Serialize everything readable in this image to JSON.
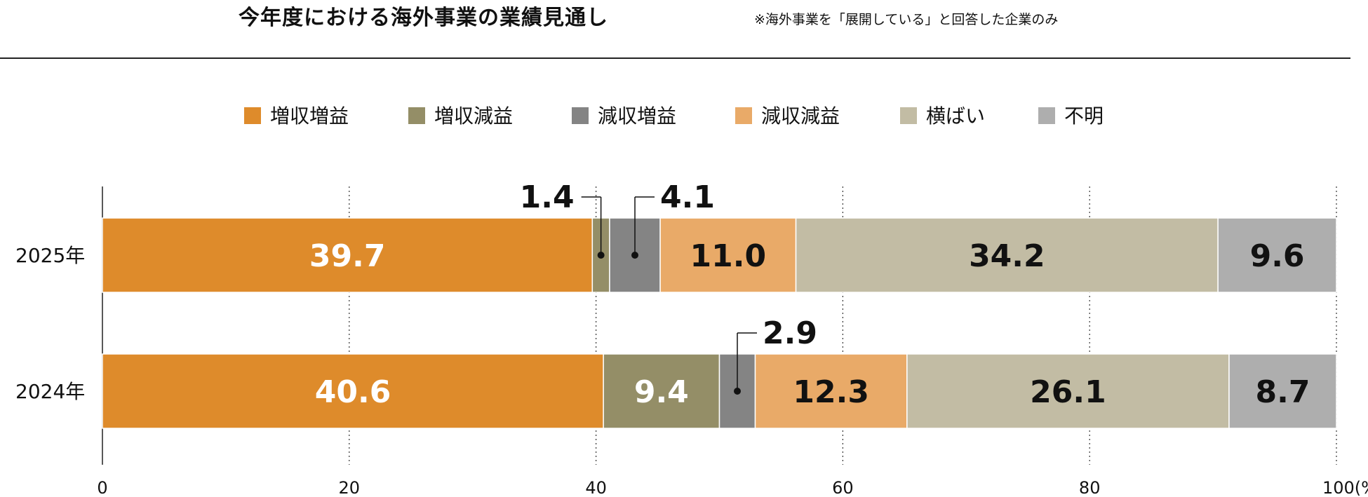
{
  "header": {
    "title": "今年度における海外事業の業績見通し",
    "note": "※海外事業を「展開している」と回答した企業のみ"
  },
  "chart_data": {
    "type": "bar",
    "orientation": "horizontal",
    "stacked": true,
    "title": "今年度における海外事業の業績見通し",
    "xlim": [
      0,
      100
    ],
    "x_ticks": [
      "0",
      "20",
      "40",
      "60",
      "80",
      "100(%)"
    ],
    "grid": "vertical dotted",
    "legend_position": "top",
    "categories": [
      "2025年",
      "2024年"
    ],
    "series": [
      {
        "name": "増収増益",
        "color": "#de8b2b",
        "text_color": "#ffffff",
        "values": [
          39.7,
          40.6
        ]
      },
      {
        "name": "増収減益",
        "color": "#948e67",
        "text_color": "#ffffff",
        "values": [
          1.4,
          9.4
        ]
      },
      {
        "name": "減収増益",
        "color": "#848484",
        "text_color": "#111111",
        "values": [
          4.1,
          2.9
        ]
      },
      {
        "name": "減収減益",
        "color": "#e9aa68",
        "text_color": "#111111",
        "values": [
          11.0,
          12.3
        ]
      },
      {
        "name": "横ばい",
        "color": "#c2bca4",
        "text_color": "#111111",
        "values": [
          34.2,
          26.1
        ]
      },
      {
        "name": "不明",
        "color": "#aeaeae",
        "text_color": "#111111",
        "values": [
          9.6,
          8.7
        ]
      }
    ]
  }
}
